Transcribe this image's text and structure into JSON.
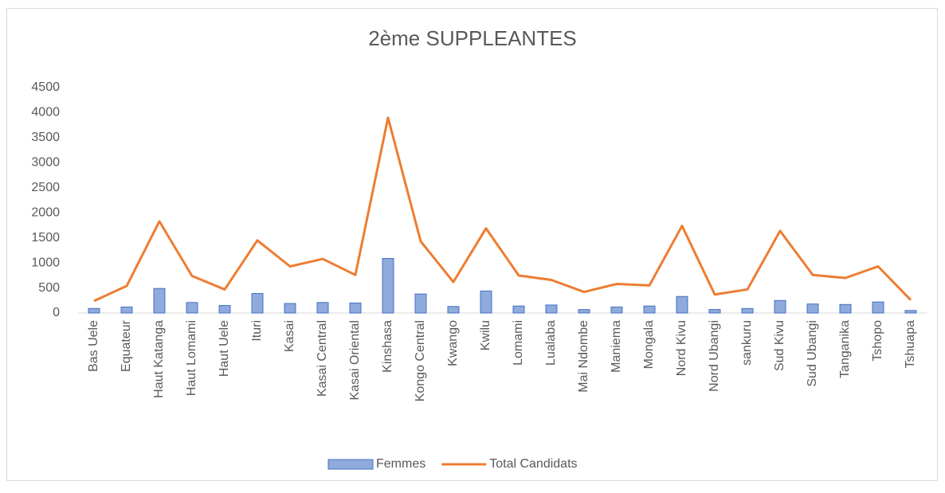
{
  "chart_data": {
    "type": "combo",
    "title": "2ème SUPPLEANTES",
    "categories": [
      "Bas Uele",
      "Equateur",
      "Haut Katanga",
      "Haut Lomami",
      "Haut Uele",
      "Ituri",
      "Kasai",
      "Kasai Central",
      "Kasai Oriental",
      "Kinshasa",
      "Kongo Central",
      "Kwango",
      "Kwilu",
      "Lomami",
      "Lualaba",
      "Mai Ndombe",
      "Maniema",
      "Mongala",
      "Nord Kivu",
      "Nord Ubangi",
      "sankuru",
      "Sud Kivu",
      "Sud Ubangi",
      "Tanganika",
      "Tshopo",
      "Tshuapa"
    ],
    "series": [
      {
        "name": "Femmes",
        "type": "bar",
        "color": "#8faadc",
        "values": [
          90,
          120,
          490,
          210,
          150,
          390,
          190,
          210,
          200,
          1090,
          380,
          130,
          440,
          140,
          160,
          70,
          120,
          140,
          330,
          70,
          90,
          250,
          180,
          170,
          220,
          50
        ]
      },
      {
        "name": "Total Candidats",
        "type": "line",
        "color": "#ed7d31",
        "values": [
          240,
          540,
          1830,
          740,
          470,
          1450,
          930,
          1080,
          760,
          3900,
          1430,
          620,
          1690,
          750,
          660,
          420,
          580,
          550,
          1740,
          370,
          470,
          1640,
          760,
          700,
          930,
          260
        ]
      }
    ],
    "ylim": [
      0,
      4500
    ],
    "yticks": [
      0,
      500,
      1000,
      1500,
      2000,
      2500,
      3000,
      3500,
      4000,
      4500
    ],
    "grid": false,
    "legend": "bottom"
  }
}
